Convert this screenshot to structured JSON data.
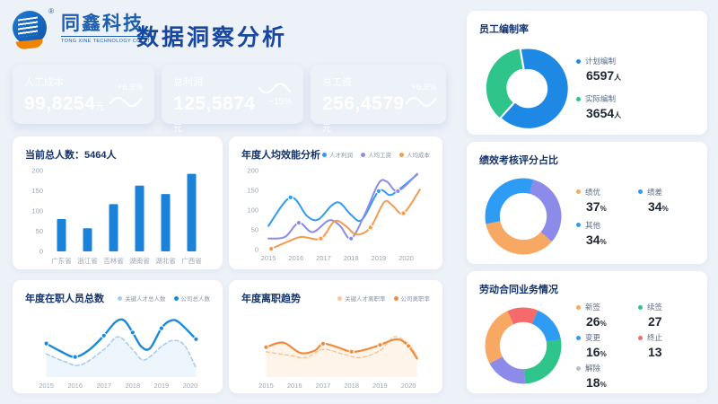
{
  "header": {
    "brand_cn": "同鑫科技",
    "brand_en": "TONG XINE TECHNOLOGY CO.,LTD",
    "reg_mark": "®",
    "title": "数据洞察分析",
    "title_color": "#17479E"
  },
  "kpis": [
    {
      "label": "人工成本",
      "value": "99,8254",
      "unit": "元",
      "delta": "+6.8%",
      "color": "#1989DC"
    },
    {
      "label": "总利润",
      "value": "125,5874",
      "unit": "元",
      "delta": "−15%",
      "color": "#8D87EA"
    },
    {
      "label": "总工资",
      "value": "256,4579",
      "unit": "元",
      "delta": "+6.8%",
      "color": "#F09A57"
    }
  ],
  "chart_data": {
    "headcount": {
      "type": "bar",
      "title": "当前总人数：5464人",
      "categories": [
        "广东省",
        "浙江省",
        "吉林省",
        "湖南省",
        "湖北省",
        "广西省"
      ],
      "values": [
        80,
        57,
        117,
        163,
        142,
        192
      ],
      "yticks": [
        0,
        50,
        100,
        150,
        200
      ],
      "ylim": [
        0,
        200
      ],
      "bar_color": "#1B82D9"
    },
    "efficiency": {
      "type": "line",
      "title": "年度人均效能分析",
      "xlim": [
        2014.8,
        2020.6
      ],
      "ylim": [
        0,
        200
      ],
      "yticks": [
        0,
        50,
        100,
        150,
        200
      ],
      "xticks": [
        2015,
        2016,
        2017,
        2018,
        2019,
        2020
      ],
      "series": [
        {
          "name": "人才利润",
          "color": "#2E9BF5",
          "width": 2,
          "points": [
            [
              2015,
              60
            ],
            [
              2015.8,
              132
            ],
            [
              2016.4,
              85
            ],
            [
              2016.8,
              76
            ],
            [
              2017.3,
              112
            ],
            [
              2017.6,
              118
            ],
            [
              2018,
              88
            ],
            [
              2018.4,
              76
            ],
            [
              2019,
              148
            ],
            [
              2019.4,
              138
            ],
            [
              2019.7,
              150
            ],
            [
              2020.4,
              190
            ]
          ],
          "dots": [
            2015.8,
            2019
          ]
        },
        {
          "name": "人均工资",
          "color": "#8C8BEA",
          "width": 2,
          "points": [
            [
              2015,
              28
            ],
            [
              2015.6,
              32
            ],
            [
              2016.1,
              68
            ],
            [
              2016.6,
              44
            ],
            [
              2017.2,
              74
            ],
            [
              2017.6,
              60
            ],
            [
              2018,
              28
            ],
            [
              2018.5,
              90
            ],
            [
              2019,
              168
            ],
            [
              2019.3,
              172
            ],
            [
              2019.7,
              148
            ],
            [
              2020.4,
              192
            ]
          ],
          "dots": [
            2016.1,
            2018,
            2019.7
          ]
        },
        {
          "name": "人均成本",
          "color": "#F79A4D",
          "width": 2,
          "points": [
            [
              2015.1,
              2
            ],
            [
              2015.7,
              20
            ],
            [
              2016.2,
              32
            ],
            [
              2016.9,
              28
            ],
            [
              2017.4,
              72
            ],
            [
              2017.8,
              60
            ],
            [
              2018.2,
              38
            ],
            [
              2018.7,
              56
            ],
            [
              2019.2,
              120
            ],
            [
              2019.5,
              112
            ],
            [
              2019.9,
              92
            ],
            [
              2020.5,
              152
            ]
          ],
          "dots": [
            2015.1,
            2016.9,
            2018.7,
            2019.9
          ]
        }
      ]
    },
    "staff_total": {
      "type": "line",
      "title": "年度在职人员总数",
      "xlim": [
        2014.7,
        2020.5
      ],
      "ylim": [
        0,
        100
      ],
      "xticks": [
        2015,
        2016,
        2017,
        2018,
        2019,
        2020
      ],
      "series": [
        {
          "name": "关键人才总人数",
          "color": "#A9CCF2",
          "width": 1.6,
          "dash": "4 3",
          "fill": "rgba(185,214,246,0.25)",
          "points": [
            [
              2015,
              38
            ],
            [
              2015.6,
              26
            ],
            [
              2016.2,
              20
            ],
            [
              2017,
              45
            ],
            [
              2017.5,
              66
            ],
            [
              2018,
              45
            ],
            [
              2018.4,
              28
            ],
            [
              2019,
              50
            ],
            [
              2019.4,
              60
            ],
            [
              2019.8,
              52
            ],
            [
              2020.2,
              15
            ]
          ],
          "dots": []
        },
        {
          "name": "公司总人数",
          "color": "#1989DC",
          "width": 2.4,
          "points": [
            [
              2015,
              55
            ],
            [
              2015.5,
              42
            ],
            [
              2016,
              33
            ],
            [
              2016.5,
              45
            ],
            [
              2017,
              68
            ],
            [
              2017.4,
              90
            ],
            [
              2017.7,
              93
            ],
            [
              2018,
              73
            ],
            [
              2018.3,
              50
            ],
            [
              2018.6,
              47
            ],
            [
              2019,
              80
            ],
            [
              2019.3,
              92
            ],
            [
              2019.6,
              90
            ],
            [
              2020.2,
              62
            ]
          ],
          "dots": [
            2015,
            2016,
            2017,
            2018,
            2019,
            2020.2
          ]
        }
      ]
    },
    "turnover": {
      "type": "line",
      "title": "年度离职趋势",
      "xlim": [
        2014.7,
        2020.5
      ],
      "ylim": [
        0,
        100
      ],
      "xticks": [
        2015,
        2016,
        2017,
        2018,
        2019,
        2020
      ],
      "series": [
        {
          "name": "关键人才离职率",
          "color": "#F8C89A",
          "width": 1.4,
          "dash": "4 3",
          "points": [
            [
              2015,
              44
            ],
            [
              2015.8,
              38
            ],
            [
              2016.4,
              34
            ],
            [
              2017,
              48
            ],
            [
              2017.7,
              40
            ],
            [
              2018.3,
              34
            ],
            [
              2019,
              46
            ],
            [
              2019.5,
              70
            ],
            [
              2020,
              58
            ],
            [
              2020.3,
              36
            ]
          ],
          "dots": []
        },
        {
          "name": "公司离职率",
          "color": "#F08A3C",
          "width": 2.2,
          "fill": "rgba(247,166,80,0.12)",
          "points": [
            [
              2015,
              52
            ],
            [
              2015.6,
              60
            ],
            [
              2016.2,
              42
            ],
            [
              2016.7,
              46
            ],
            [
              2017,
              58
            ],
            [
              2017.5,
              52
            ],
            [
              2018,
              44
            ],
            [
              2018.5,
              48
            ],
            [
              2019,
              56
            ],
            [
              2019.6,
              66
            ],
            [
              2020,
              54
            ],
            [
              2020.3,
              32
            ]
          ],
          "dots": [
            2015,
            2017,
            2018,
            2019,
            2020
          ]
        }
      ]
    },
    "staffing_rate": {
      "type": "pie",
      "title": "员工编制率",
      "start_deg": -100,
      "draw_order": [
        0,
        1
      ],
      "segments": [
        {
          "label": "计划编制",
          "value": 6597,
          "suffix": "人",
          "color": "#1E88E5",
          "dot": "#1E88E5",
          "explode": 3
        },
        {
          "label": "实际编制",
          "value": 3654,
          "suffix": "人",
          "color": "#2FC58A",
          "dot": "#2FC58A",
          "explode": 0
        }
      ]
    },
    "performance": {
      "type": "pie",
      "title": "绩效考核评分占比",
      "start_deg": -75,
      "draw_order": [
        1,
        0,
        2
      ],
      "segments": [
        {
          "label": "绩优",
          "value": 37,
          "suffix": "%",
          "color": "#F7A862",
          "dot": "#F7A862",
          "explode": 0
        },
        {
          "label": "绩差",
          "value": 34,
          "suffix": "%",
          "color": "#8C8BEA",
          "dot": "#2E9BF5",
          "explode": 0
        },
        {
          "label": "其他",
          "value": 34,
          "suffix": "%",
          "color": "#2E9BF5",
          "dot": "#2E9BF5",
          "explode": 0
        }
      ]
    },
    "contract": {
      "type": "pie",
      "title": "劳动合同业务情况",
      "start_deg": -10,
      "draw_order": [
        1,
        4,
        0,
        3,
        2
      ],
      "segments": [
        {
          "label": "新签",
          "value": 26,
          "suffix": "%",
          "color": "#F7A862",
          "dot": "#F7A862",
          "explode": 0
        },
        {
          "label": "续签",
          "value": 27,
          "suffix": "",
          "color": "#2FC58A",
          "dot": "#2FC58A",
          "explode": 0
        },
        {
          "label": "变更",
          "value": 16,
          "suffix": "%",
          "color": "#2E9BF5",
          "dot": "#2E9BF5",
          "explode": 0
        },
        {
          "label": "终止",
          "value": 13,
          "suffix": "",
          "color": "#F56B6B",
          "dot": "#F56B6B",
          "explode": 0
        },
        {
          "label": "解除",
          "value": 18,
          "suffix": "%",
          "color": "#8C8BEA",
          "dot": "#B9BFC9",
          "explode": 0
        }
      ]
    }
  }
}
